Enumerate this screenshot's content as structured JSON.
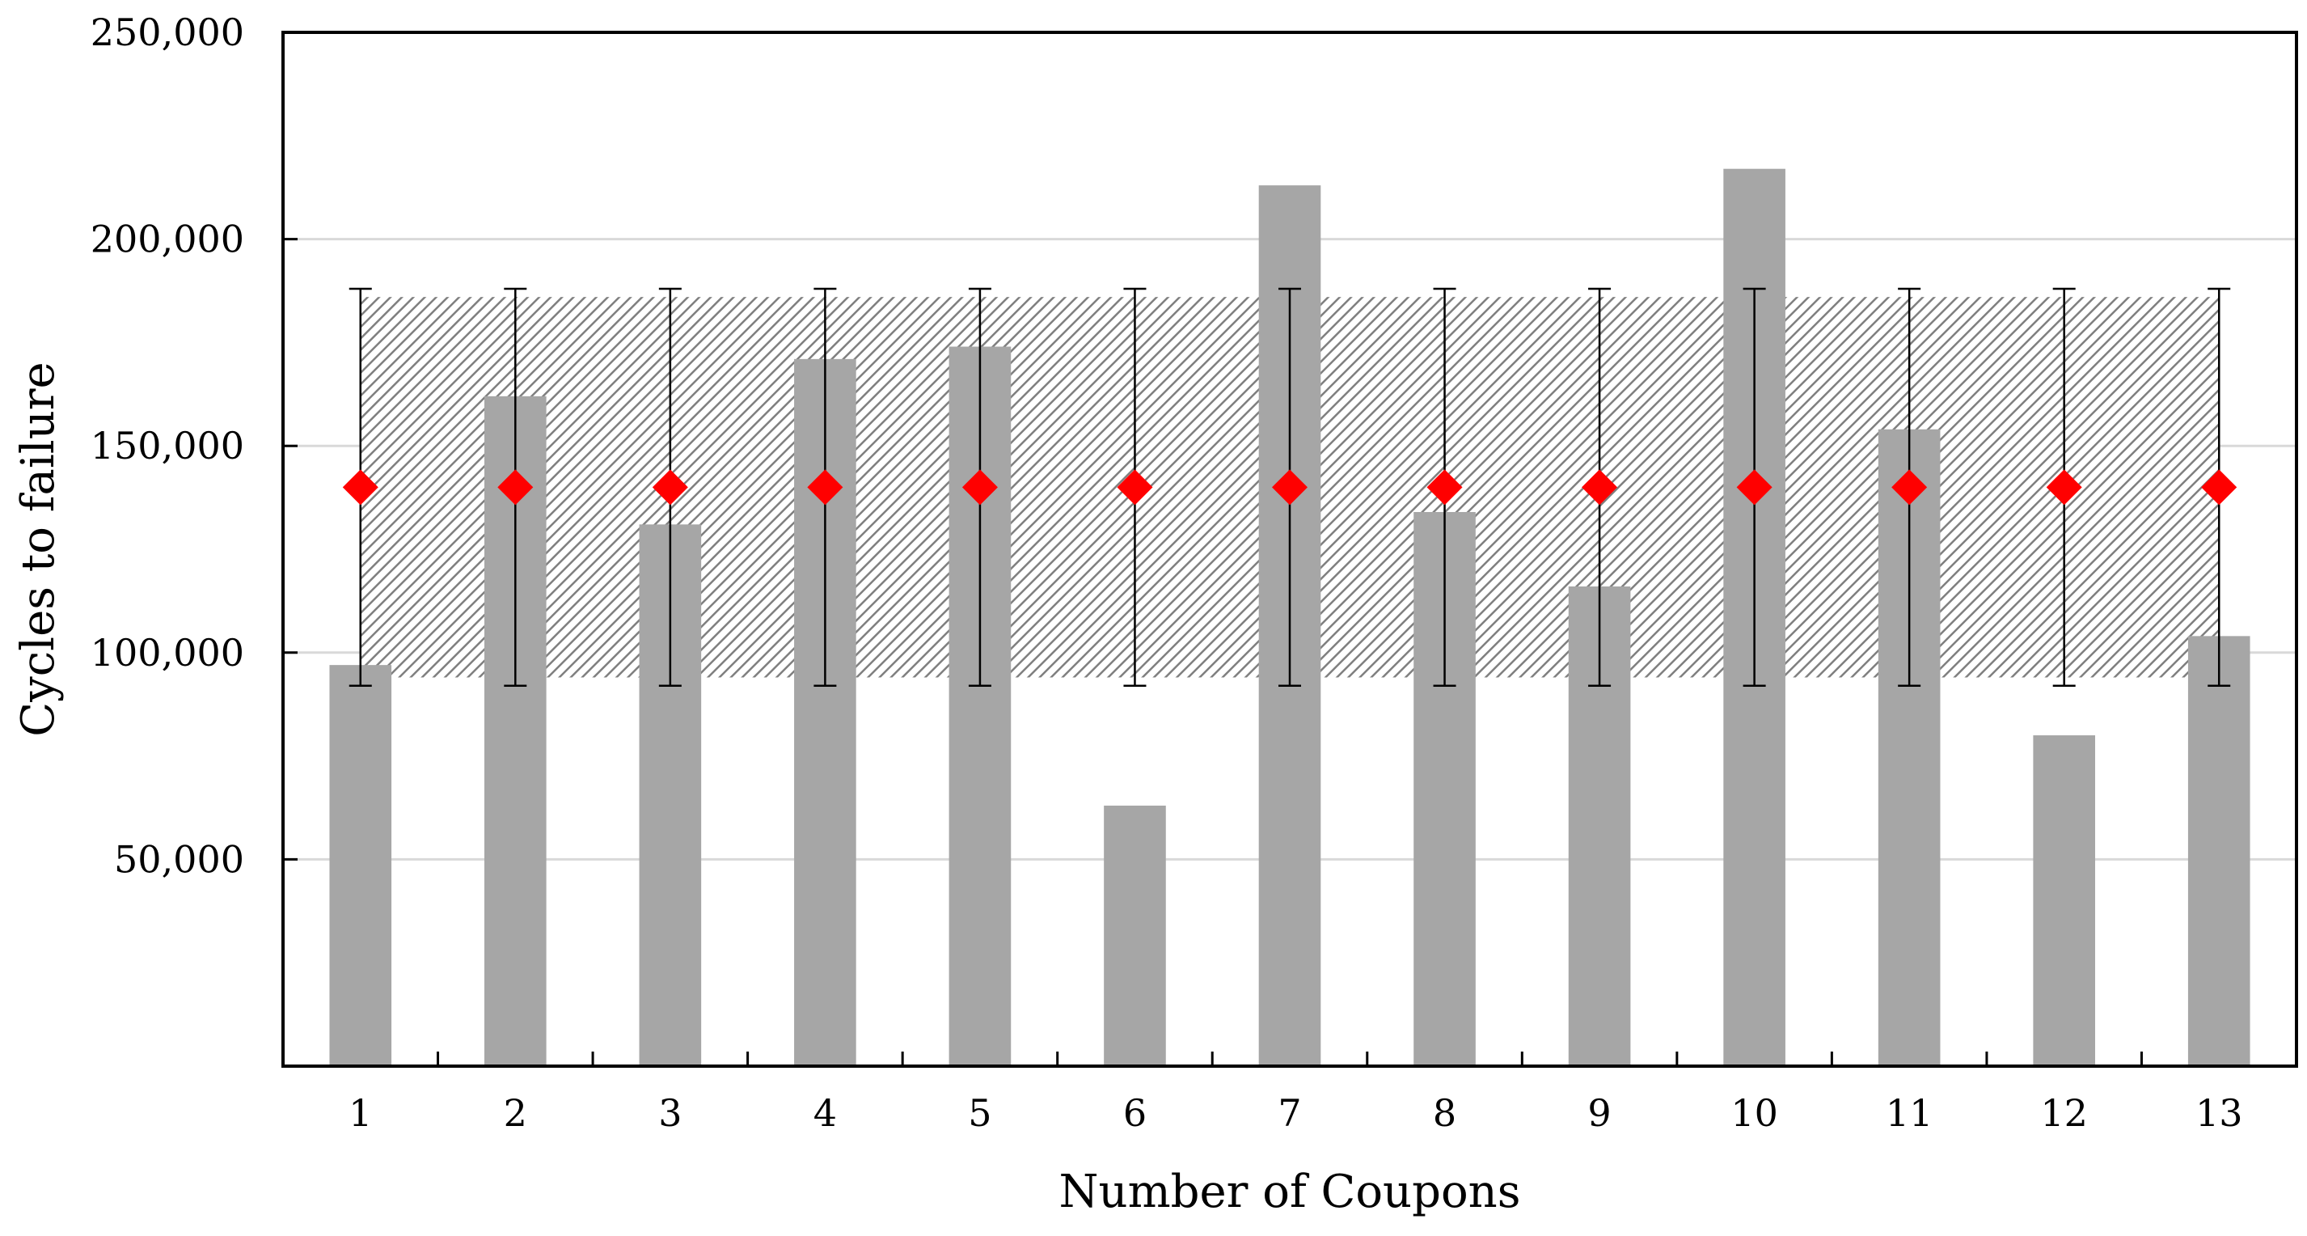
{
  "chart_data": {
    "type": "bar",
    "title": "",
    "xlabel": "Number of Coupons",
    "ylabel": "Cycles to failure",
    "categories": [
      "1",
      "2",
      "3",
      "4",
      "5",
      "6",
      "7",
      "8",
      "9",
      "10",
      "11",
      "12",
      "13"
    ],
    "values": [
      97000,
      162000,
      131000,
      171000,
      174000,
      63000,
      213000,
      134000,
      116000,
      217000,
      154000,
      80000,
      104000
    ],
    "mean": 140000,
    "band": {
      "low": 94000,
      "high": 186000
    },
    "error_bar": {
      "low": 92000,
      "high": 188000
    },
    "ylim": [
      0,
      250000
    ],
    "yticks": [
      50000,
      100000,
      150000,
      200000,
      250000
    ],
    "ytick_labels": [
      "50,000",
      "100,000",
      "150,000",
      "200,000",
      "250,000"
    ],
    "grid": true,
    "colors": {
      "bar": "#a6a6a6",
      "marker": "#ff0000",
      "band_hatch": "#7f7f7f",
      "grid": "#d9d9d9",
      "axis": "#000000"
    }
  }
}
